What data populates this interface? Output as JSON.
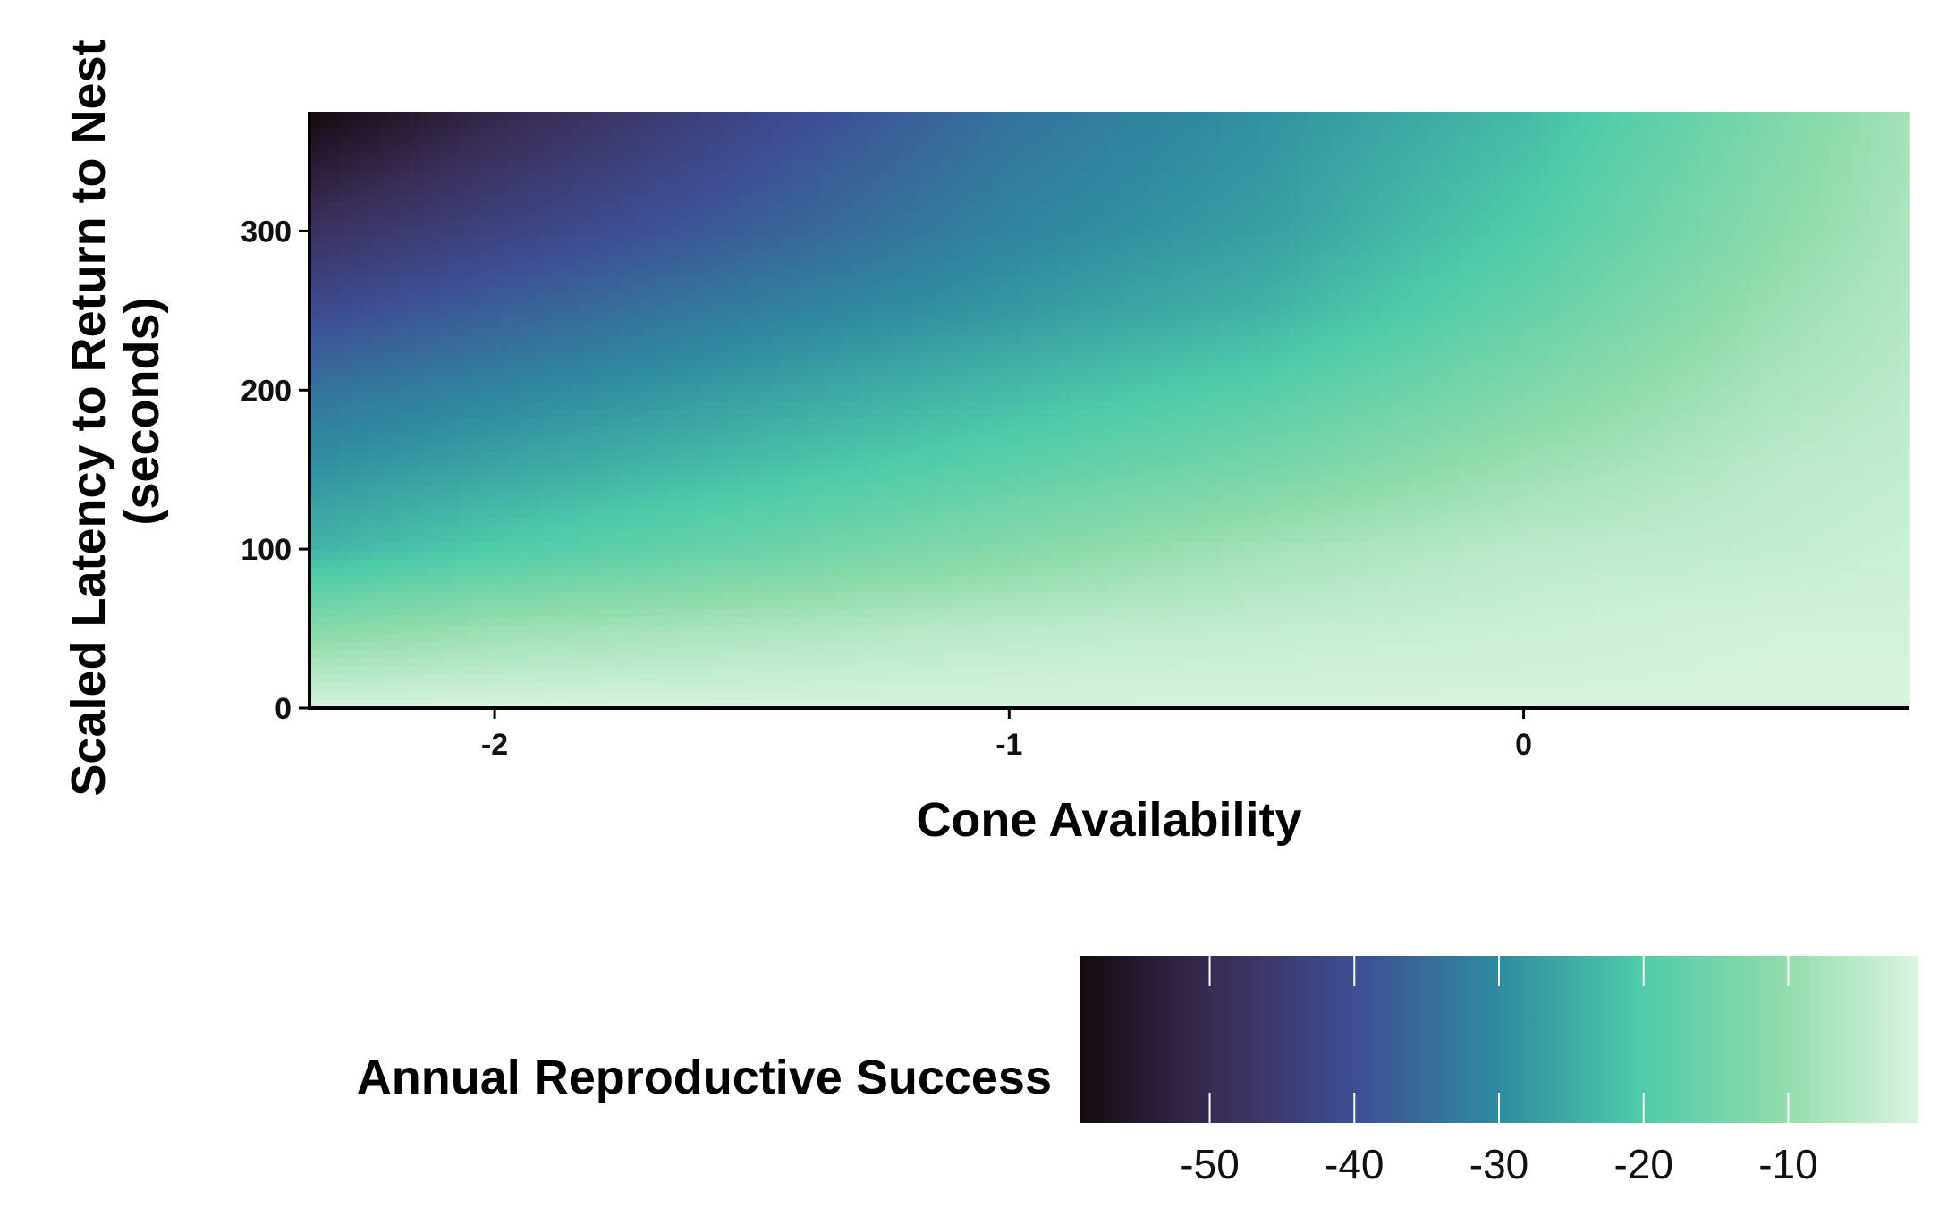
{
  "chart_data": {
    "type": "heatmap",
    "title": "",
    "xlabel": "Cone Availability",
    "ylabel_line1": "Scaled Latency to Return to Nest",
    "ylabel_line2": "(seconds)",
    "xlim": [
      -2.36,
      0.75
    ],
    "ylim": [
      0,
      375
    ],
    "x_ticks": [
      -2,
      -1,
      0
    ],
    "x_tick_labels": [
      "-2",
      "-1",
      "0"
    ],
    "y_ticks": [
      0,
      100,
      200,
      300
    ],
    "y_tick_labels": [
      "0",
      "100",
      "200",
      "300"
    ],
    "grid": false,
    "surface": {
      "x": [
        -2.36,
        -2.0,
        -1.5,
        -1.0,
        -0.5,
        0.0,
        0.5,
        0.75
      ],
      "y": [
        0,
        50,
        100,
        150,
        200,
        250,
        300,
        375
      ],
      "z": [
        [
          -1.5,
          -1.5,
          -1.5,
          -1.5,
          -1.5,
          -1.5,
          -1.5,
          -1.5
        ],
        [
          -12,
          -9,
          -7,
          -5,
          -4,
          -3,
          -2,
          -2
        ],
        [
          -24,
          -20,
          -16,
          -12,
          -8,
          -5,
          -4,
          -3
        ],
        [
          -29,
          -26,
          -22,
          -18,
          -14,
          -9,
          -5,
          -4
        ],
        [
          -34,
          -31,
          -27,
          -23,
          -19,
          -13,
          -7,
          -5
        ],
        [
          -41,
          -37,
          -32,
          -28,
          -24,
          -17,
          -9,
          -6
        ],
        [
          -48,
          -43,
          -37,
          -31,
          -27,
          -20,
          -11,
          -7
        ],
        [
          -59,
          -51,
          -42,
          -34,
          -29,
          -23,
          -13,
          -8
        ]
      ]
    },
    "legend": {
      "title": "Annual Reproductive Success",
      "placement": "bottom",
      "range": [
        -59,
        -1
      ],
      "ticks": [
        -50,
        -40,
        -30,
        -20,
        -10
      ],
      "tick_labels": [
        "-50",
        "-40",
        "-30",
        "-20",
        "-10"
      ],
      "colors": [
        "#140a0e",
        "#3a2d57",
        "#3e4f95",
        "#2f8ba0",
        "#4ecba9",
        "#8edbaa",
        "#daf4e0"
      ]
    }
  }
}
